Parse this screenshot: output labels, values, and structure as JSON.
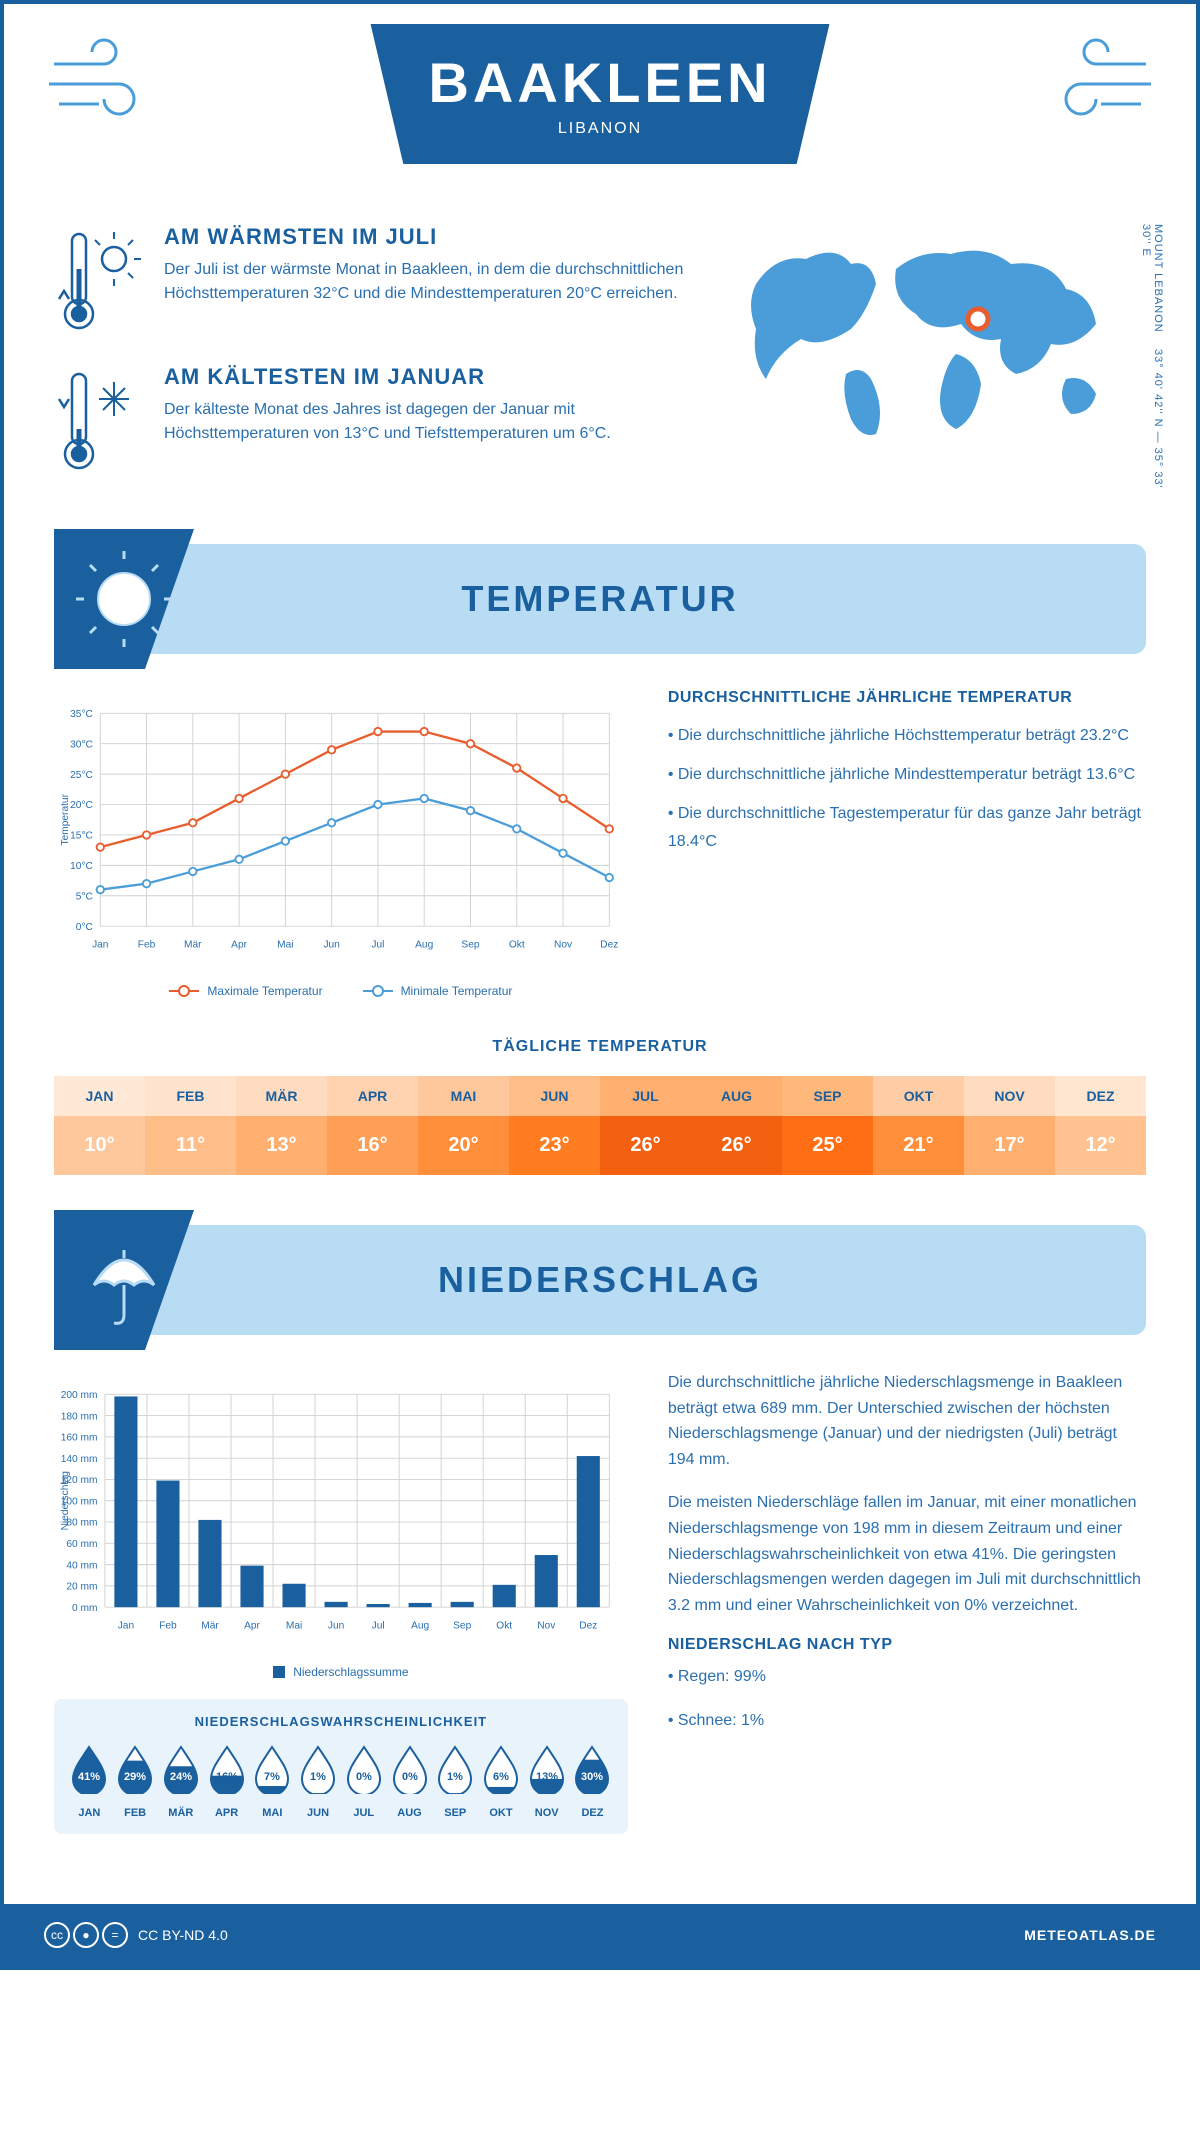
{
  "header": {
    "city": "BAAKLEEN",
    "country": "LIBANON"
  },
  "coords": {
    "lat": "33° 40' 42'' N",
    "lon": "35° 33' 30'' E",
    "region": "MOUNT LEBANON"
  },
  "warmest": {
    "title": "AM WÄRMSTEN IM JULI",
    "text": "Der Juli ist der wärmste Monat in Baakleen, in dem die durchschnittlichen Höchsttemperaturen 32°C und die Mindesttemperaturen 20°C erreichen."
  },
  "coldest": {
    "title": "AM KÄLTESTEN IM JANUAR",
    "text": "Der kälteste Monat des Jahres ist dagegen der Januar mit Höchsttemperaturen von 13°C und Tiefsttemperaturen um 6°C."
  },
  "sections": {
    "temperature": "TEMPERATUR",
    "precipitation": "NIEDERSCHLAG"
  },
  "tempChart": {
    "months": [
      "Jan",
      "Feb",
      "Mär",
      "Apr",
      "Mai",
      "Jun",
      "Jul",
      "Aug",
      "Sep",
      "Okt",
      "Nov",
      "Dez"
    ],
    "max": [
      13,
      15,
      17,
      21,
      25,
      29,
      32,
      32,
      30,
      26,
      21,
      16
    ],
    "min": [
      6,
      7,
      9,
      11,
      14,
      17,
      20,
      21,
      19,
      16,
      12,
      8
    ],
    "ylabel": "Temperatur",
    "ylim": [
      0,
      35
    ],
    "ytick": 5,
    "maxColor": "#e85d2e",
    "minColor": "#4a9dd8",
    "maxLabel": "Maximale Temperatur",
    "minLabel": "Minimale Temperatur",
    "grid": "#d0d0d0",
    "bg": "#ffffff"
  },
  "tempInfo": {
    "title": "DURCHSCHNITTLICHE JÄHRLICHE TEMPERATUR",
    "items": [
      "• Die durchschnittliche jährliche Höchsttemperatur beträgt 23.2°C",
      "• Die durchschnittliche jährliche Mindesttemperatur beträgt 13.6°C",
      "• Die durchschnittliche Tagestemperatur für das ganze Jahr beträgt 18.4°C"
    ]
  },
  "dailyTemp": {
    "title": "TÄGLICHE TEMPERATUR",
    "months": [
      "JAN",
      "FEB",
      "MÄR",
      "APR",
      "MAI",
      "JUN",
      "JUL",
      "AUG",
      "SEP",
      "OKT",
      "NOV",
      "DEZ"
    ],
    "values": [
      "10°",
      "11°",
      "13°",
      "16°",
      "20°",
      "23°",
      "26°",
      "26°",
      "25°",
      "21°",
      "17°",
      "12°"
    ],
    "headerColors": [
      "#ffe9d6",
      "#ffe3cc",
      "#ffdcc0",
      "#ffd3b0",
      "#ffc89c",
      "#ffbd87",
      "#ffb070",
      "#ffb070",
      "#ffb87c",
      "#ffcda5",
      "#ffdcc0",
      "#ffe6d0"
    ],
    "valueColors": [
      "#ffc89c",
      "#ffbd87",
      "#ffb070",
      "#ff9f55",
      "#ff8e3a",
      "#ff7d20",
      "#f26010",
      "#f26010",
      "#ff6e15",
      "#ff8e3a",
      "#ffb070",
      "#ffc290"
    ]
  },
  "precipChart": {
    "months": [
      "Jan",
      "Feb",
      "Mär",
      "Apr",
      "Mai",
      "Jun",
      "Jul",
      "Aug",
      "Sep",
      "Okt",
      "Nov",
      "Dez"
    ],
    "values": [
      198,
      119,
      82,
      39,
      22,
      5,
      3,
      4,
      5,
      21,
      49,
      142
    ],
    "ylabel": "Niederschlag",
    "ylim": [
      0,
      200
    ],
    "ytick": 20,
    "barColor": "#1a5f9e",
    "grid": "#d0d0d0",
    "legend": "Niederschlagssumme"
  },
  "precipInfo": {
    "p1": "Die durchschnittliche jährliche Niederschlagsmenge in Baakleen beträgt etwa 689 mm. Der Unterschied zwischen der höchsten Niederschlagsmenge (Januar) und der niedrigsten (Juli) beträgt 194 mm.",
    "p2": "Die meisten Niederschläge fallen im Januar, mit einer monatlichen Niederschlagsmenge von 198 mm in diesem Zeitraum und einer Niederschlagswahrscheinlichkeit von etwa 41%. Die geringsten Niederschlagsmengen werden dagegen im Juli mit durchschnittlich 3.2 mm und einer Wahrscheinlichkeit von 0% verzeichnet.",
    "typeTitle": "NIEDERSCHLAG NACH TYP",
    "types": [
      "• Regen: 99%",
      "• Schnee: 1%"
    ]
  },
  "precipProb": {
    "title": "NIEDERSCHLAGSWAHRSCHEINLICHKEIT",
    "months": [
      "JAN",
      "FEB",
      "MÄR",
      "APR",
      "MAI",
      "JUN",
      "JUL",
      "AUG",
      "SEP",
      "OKT",
      "NOV",
      "DEZ"
    ],
    "pct": [
      "41%",
      "29%",
      "24%",
      "16%",
      "7%",
      "1%",
      "0%",
      "0%",
      "1%",
      "6%",
      "13%",
      "30%"
    ],
    "fillPct": [
      100,
      71,
      59,
      39,
      17,
      2,
      0,
      0,
      2,
      15,
      32,
      73
    ],
    "dropFill": "#1a5f9e",
    "dropEmpty": "#ffffff",
    "dropStroke": "#1a5f9e"
  },
  "footer": {
    "license": "CC BY-ND 4.0",
    "site": "METEOATLAS.DE"
  }
}
